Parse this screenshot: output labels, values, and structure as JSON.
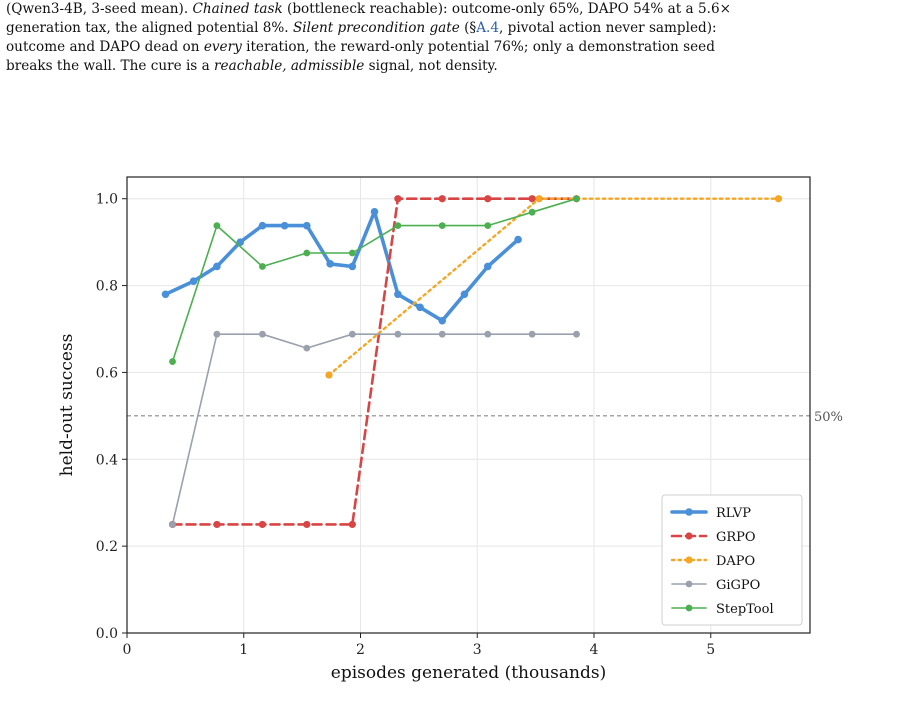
{
  "caption": {
    "line1_fragment": "(Qwen3-4B, 3-seed mean).",
    "line1_italic": "Chained task",
    "line1_rest": "(bottleneck reachable): outcome-only 65%, DAPO 54% at a 5.6×",
    "line2_start": "generation tax, the aligned potential 8%.",
    "line2_italic": "Silent precondition gate",
    "line2_paren_open": "(§",
    "line2_ref": "A.4",
    "line2_rest": ", pivotal action never sampled):",
    "line3_start": "outcome and DAPO dead on",
    "line3_italic": "every",
    "line3_rest": "iteration, the reward-only potential 76%; only a demonstration seed",
    "line4_start": "breaks the wall. The cure is a",
    "line4_italic": "reachable, admissible",
    "line4_rest": "signal, not density."
  },
  "chart_data": {
    "type": "line",
    "xlabel": "episodes generated (thousands)",
    "ylabel": "held-out success",
    "xlim": [
      0,
      5.85
    ],
    "ylim": [
      0,
      1.05
    ],
    "xticks": [
      "0",
      "1",
      "2",
      "3",
      "4",
      "5"
    ],
    "yticks": [
      "0.0",
      "0.2",
      "0.4",
      "0.6",
      "0.8",
      "1.0"
    ],
    "grid": true,
    "legend_position": "lower-right",
    "reference_line": {
      "y": 0.5,
      "label": "50%"
    },
    "series": [
      {
        "name": "RLVP",
        "color": "#4a90d9",
        "style": "solid-thick",
        "x": [
          0.33,
          0.57,
          0.77,
          0.97,
          1.16,
          1.35,
          1.54,
          1.74,
          1.93,
          2.12,
          2.32,
          2.51,
          2.7,
          2.89,
          3.09,
          3.35
        ],
        "y": [
          0.78,
          0.81,
          0.844,
          0.9,
          0.938,
          0.938,
          0.938,
          0.85,
          0.844,
          0.97,
          0.78,
          0.75,
          0.719,
          0.78,
          0.844,
          0.906
        ]
      },
      {
        "name": "GRPO",
        "color": "#d94545",
        "style": "dashed",
        "x": [
          0.39,
          0.77,
          1.16,
          1.54,
          1.93,
          2.32,
          2.7,
          3.09,
          3.47,
          3.85
        ],
        "y": [
          0.25,
          0.25,
          0.25,
          0.25,
          0.25,
          1.0,
          1.0,
          1.0,
          1.0,
          1.0
        ]
      },
      {
        "name": "DAPO",
        "color": "#f5a623",
        "style": "dotted",
        "x": [
          1.73,
          3.53,
          5.58
        ],
        "y": [
          0.594,
          1.0,
          1.0
        ]
      },
      {
        "name": "GiGPO",
        "color": "#9aa0ad",
        "style": "solid",
        "x": [
          0.39,
          0.77,
          1.16,
          1.54,
          1.93,
          2.32,
          2.7,
          3.09,
          3.47,
          3.85
        ],
        "y": [
          0.25,
          0.688,
          0.688,
          0.656,
          0.688,
          0.688,
          0.688,
          0.688,
          0.688,
          0.688
        ]
      },
      {
        "name": "StepTool",
        "color": "#4caf50",
        "style": "solid",
        "x": [
          0.39,
          0.77,
          1.16,
          1.54,
          1.93,
          2.32,
          2.7,
          3.09,
          3.47,
          3.85
        ],
        "y": [
          0.625,
          0.938,
          0.844,
          0.875,
          0.875,
          0.938,
          0.938,
          0.938,
          0.969,
          1.0
        ]
      }
    ]
  }
}
